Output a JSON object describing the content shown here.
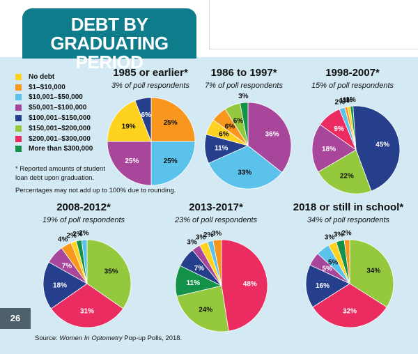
{
  "header": {
    "title_line1": "DEBT BY",
    "title_line2": "GRADUATING PERIOD"
  },
  "legend": {
    "items": [
      {
        "label": "No debt",
        "color": "#ffd21f"
      },
      {
        "label": "$1–$10,000",
        "color": "#f8961d"
      },
      {
        "label": "$10,001–$50,000",
        "color": "#5bc2ec"
      },
      {
        "label": "$50,001–$100,000",
        "color": "#a8469b"
      },
      {
        "label": "$100,001–$150,000",
        "color": "#253f8c"
      },
      {
        "label": "$150,001–$200,000",
        "color": "#94c83d"
      },
      {
        "label": "$200,001–$300,000",
        "color": "#ea2c61"
      },
      {
        "label": "More than $300,000",
        "color": "#14924a"
      }
    ]
  },
  "notes": {
    "footnote_line1": "* Reported amounts of student",
    "footnote_line2": "loan debt upon graduation.",
    "rounding": "Percentages may not add up to 100% due to rounding."
  },
  "page_number": "26",
  "source": {
    "prefix": "Source: ",
    "italic": "Women In Optometry",
    "suffix": " Pop-up Polls, 2018."
  },
  "chart_data": [
    {
      "type": "pie",
      "title": "1985 or earlier*",
      "subtitle": "3% of poll respondents",
      "categories": [
        "No debt",
        "$1–$10,000",
        "$10,001–$50,000",
        "$50,001–$100,000",
        "$100,001–$150,000",
        "$150,001–$200,000",
        "$200,001–$300,000",
        "More than $300,000"
      ],
      "values": [
        19,
        25,
        25,
        25,
        6,
        0,
        0,
        0
      ],
      "labels": [
        "19%",
        "25%",
        "25%",
        "25%",
        "6%",
        "",
        "",
        ""
      ]
    },
    {
      "type": "pie",
      "title": "1986 to 1997*",
      "subtitle": "7% of poll respondents",
      "categories": [
        "No debt",
        "$1–$10,000",
        "$10,001–$50,000",
        "$50,001–$100,000",
        "$100,001–$150,000",
        "$150,001–$200,000",
        "$200,001–$300,000",
        "More than $300,000"
      ],
      "values": [
        6,
        6,
        33,
        36,
        11,
        6,
        0,
        3
      ],
      "labels": [
        "6%",
        "6%",
        "33%",
        "36%",
        "11%",
        "6%",
        "",
        "3%"
      ]
    },
    {
      "type": "pie",
      "title": "1998-2007*",
      "subtitle": "15% of poll respondents",
      "categories": [
        "No debt",
        "$1–$10,000",
        "$10,001–$50,000",
        "$50,001–$100,000",
        "$100,001–$150,000",
        "$150,001–$200,000",
        "$200,001–$300,000",
        "More than $300,000"
      ],
      "values": [
        1,
        1,
        2,
        18,
        45,
        22,
        9,
        1
      ],
      "labels": [
        "1%",
        "1%",
        "2%",
        "18%",
        "45%",
        "22%",
        "9%",
        "1%"
      ]
    },
    {
      "type": "pie",
      "title": "2008-2012*",
      "subtitle": "19% of poll respondents",
      "categories": [
        "No debt",
        "$1–$10,000",
        "$10,001–$50,000",
        "$50,001–$100,000",
        "$100,001–$150,000",
        "$150,001–$200,000",
        "$200,001–$300,000",
        "More than $300,000"
      ],
      "values": [
        2,
        4,
        2,
        7,
        18,
        35,
        31,
        2
      ],
      "labels": [
        "2%",
        "4%",
        "2%",
        "7%",
        "18%",
        "35%",
        "31%",
        "2%"
      ]
    },
    {
      "type": "pie",
      "title": "2013-2017*",
      "subtitle": "23% of poll respondents",
      "categories": [
        "No debt",
        "$1–$10,000",
        "$10,001–$50,000",
        "$50,001–$100,000",
        "$100,001–$150,000",
        "$150,001–$200,000",
        "$200,001–$300,000",
        "More than $300,000"
      ],
      "values": [
        3,
        3,
        2,
        3,
        7,
        24,
        48,
        11
      ],
      "labels": [
        "3%",
        "3%",
        "2%",
        "3%",
        "7%",
        "24%",
        "48%",
        "11%"
      ]
    },
    {
      "type": "pie",
      "title": "2018 or still in school*",
      "subtitle": "34% of poll respondents",
      "categories": [
        "No debt",
        "$1–$10,000",
        "$10,001–$50,000",
        "$50,001–$100,000",
        "$100,001–$150,000",
        "$150,001–$200,000",
        "$200,001–$300,000",
        "More than $300,000"
      ],
      "values": [
        3,
        2,
        5,
        5,
        16,
        34,
        32,
        3
      ],
      "labels": [
        "3%",
        "2%",
        "5%",
        "5%",
        "16%",
        "34%",
        "32%",
        "3%"
      ]
    }
  ]
}
